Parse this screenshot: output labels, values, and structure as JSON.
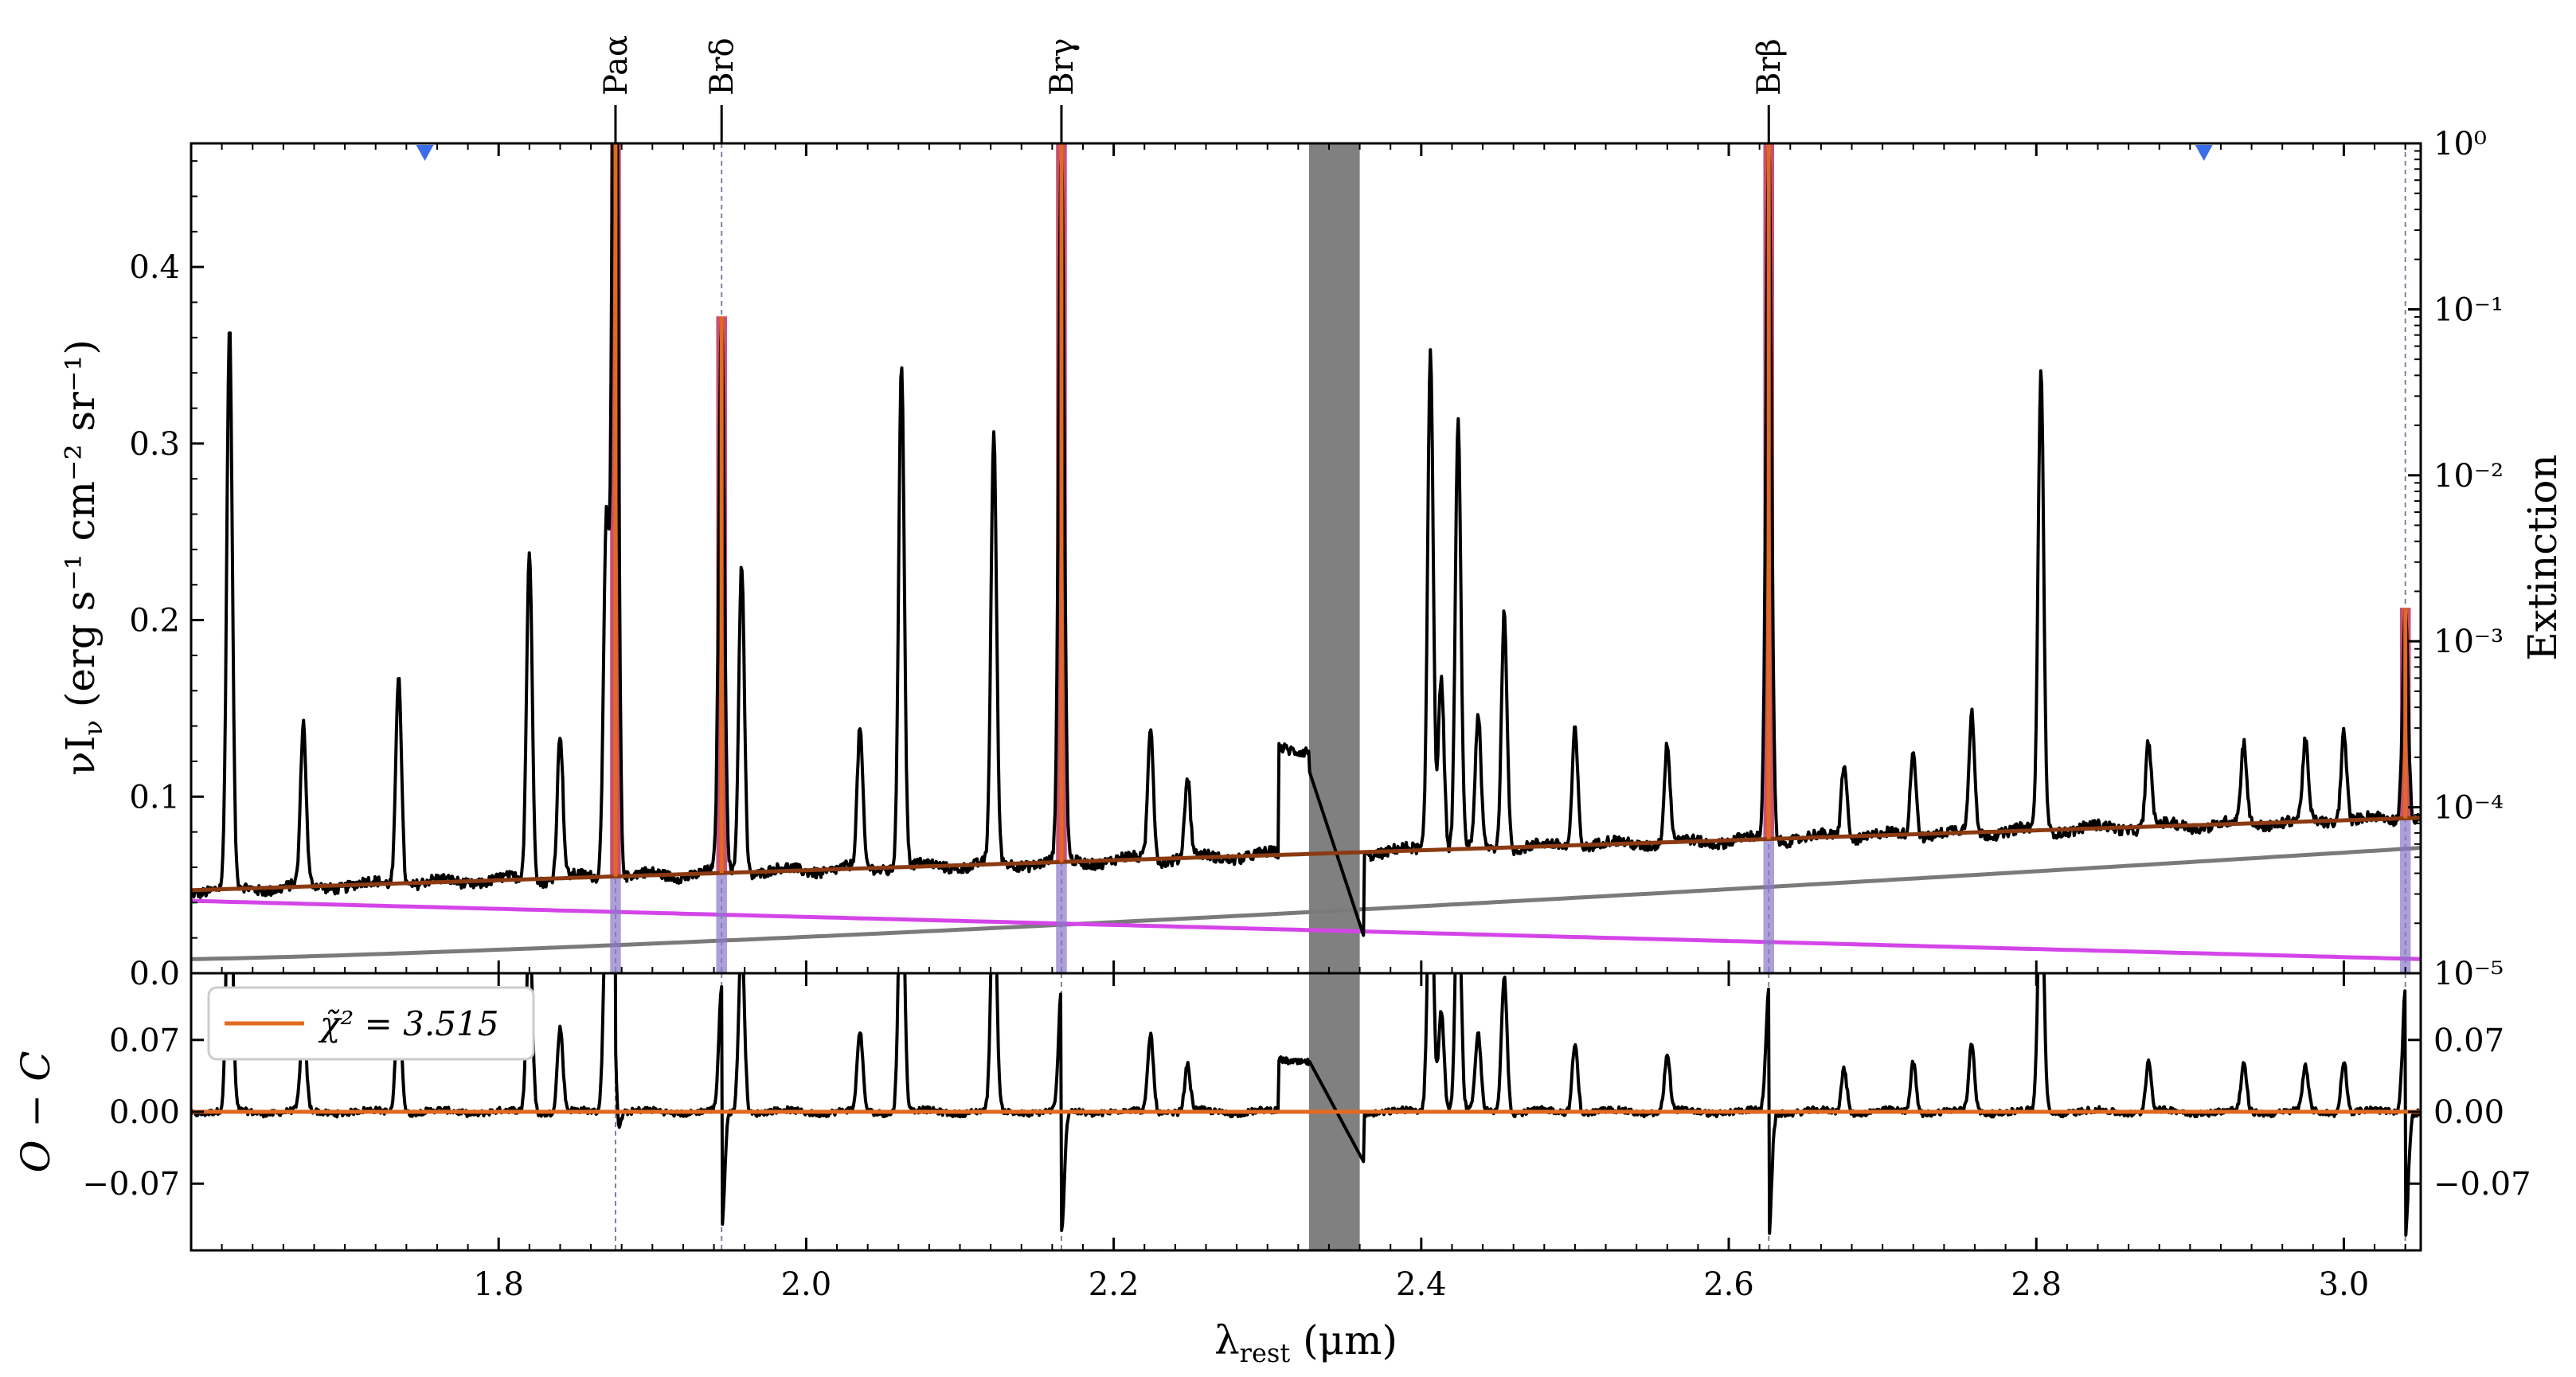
{
  "chart_data": {
    "type": "line",
    "colors": {
      "data": "#000000",
      "model": "#e06a1f",
      "continuum": "#8b3a12",
      "stellar": "#7a7a7a",
      "extinction": "#d445e8",
      "line_fill": "#c0305a",
      "line_base": "#8a78c8",
      "masked": "#808080",
      "marker": "#3a6ee8"
    },
    "xlabel": "λ_rest (μm)",
    "xlabel_main": "λ",
    "xlabel_sub": "rest",
    "xlabel_unit": " (μm)",
    "xlim": [
      1.6,
      3.05
    ],
    "xticks": [
      "1.8",
      "2.0",
      "2.2",
      "2.4",
      "2.6",
      "2.8",
      "3.0"
    ],
    "xtick_values": [
      1.8,
      2.0,
      2.2,
      2.4,
      2.6,
      2.8,
      3.0
    ],
    "top_panel": {
      "ylabel": "νI_ν (erg s⁻¹ cm⁻² sr⁻¹)",
      "ylabel_main": "νI",
      "ylabel_sub": "ν",
      "ylabel_unit": " (erg s⁻¹ cm⁻² sr⁻¹)",
      "ylim": [
        0.0,
        0.47
      ],
      "yticks": [
        "0.0",
        "0.1",
        "0.2",
        "0.3",
        "0.4"
      ],
      "ytick_values": [
        0.0,
        0.1,
        0.2,
        0.3,
        0.4
      ],
      "right_ylabel": "Extinction",
      "right_yscale": "log",
      "right_ylim": [
        1e-05,
        1.0
      ],
      "right_yticks": [
        "10⁻⁵",
        "10⁻⁴",
        "10⁻³",
        "10⁻²",
        "10⁻¹",
        "10⁰"
      ],
      "right_ytick_values": [
        1e-05,
        0.0001,
        0.001,
        0.01,
        0.1,
        1.0
      ],
      "continuum_start": 0.047,
      "continuum_end": 0.088,
      "stellar_start": 0.008,
      "stellar_end": 0.071,
      "extinction_start": 0.041,
      "extinction_end": 0.008,
      "emission_lines": [
        {
          "x": 1.625,
          "peak": 0.365
        },
        {
          "x": 1.673,
          "peak": 0.14
        },
        {
          "x": 1.735,
          "peak": 0.172
        },
        {
          "x": 1.82,
          "peak": 0.24
        },
        {
          "x": 1.84,
          "peak": 0.136
        },
        {
          "x": 1.87,
          "peak": 0.257
        },
        {
          "x": 1.875,
          "peak": 0.273
        },
        {
          "x": 1.958,
          "peak": 0.234
        },
        {
          "x": 2.035,
          "peak": 0.137
        },
        {
          "x": 2.062,
          "peak": 0.347
        },
        {
          "x": 2.122,
          "peak": 0.304
        },
        {
          "x": 2.224,
          "peak": 0.141
        },
        {
          "x": 2.248,
          "peak": 0.11
        },
        {
          "x": 2.406,
          "peak": 0.355
        },
        {
          "x": 2.413,
          "peak": 0.17
        },
        {
          "x": 2.424,
          "peak": 0.312
        },
        {
          "x": 2.437,
          "peak": 0.145
        },
        {
          "x": 2.454,
          "peak": 0.206
        },
        {
          "x": 2.5,
          "peak": 0.14
        },
        {
          "x": 2.56,
          "peak": 0.13
        },
        {
          "x": 2.675,
          "peak": 0.12
        },
        {
          "x": 2.72,
          "peak": 0.128
        },
        {
          "x": 2.758,
          "peak": 0.147
        },
        {
          "x": 2.803,
          "peak": 0.341
        },
        {
          "x": 2.873,
          "peak": 0.132
        },
        {
          "x": 2.935,
          "peak": 0.13
        },
        {
          "x": 2.975,
          "peak": 0.13
        },
        {
          "x": 3.0,
          "peak": 0.138
        }
      ],
      "fitted_lines": [
        {
          "name": "Paα",
          "x": 1.876,
          "model_peak": 0.47
        },
        {
          "name": "Brδ",
          "x": 1.945,
          "model_peak": 0.372
        },
        {
          "name": "Brγ",
          "x": 2.166,
          "model_peak": 0.47
        },
        {
          "name": "Brβ",
          "x": 2.626,
          "model_peak": 0.47
        },
        {
          "name": "",
          "x": 3.04,
          "model_peak": 0.207
        }
      ],
      "upper_limit_markers": [
        1.752,
        2.909
      ]
    },
    "masked_region": [
      2.327,
      2.36
    ],
    "bottom_panel": {
      "ylabel": "O − C",
      "ylim": [
        -0.135,
        0.135
      ],
      "yticks": [
        "−0.07",
        "0.00",
        "0.07"
      ],
      "ytick_values": [
        -0.07,
        0.0,
        0.07
      ],
      "legend": {
        "label": "χ̃² = 3.515",
        "placement": "upper-left"
      }
    }
  }
}
